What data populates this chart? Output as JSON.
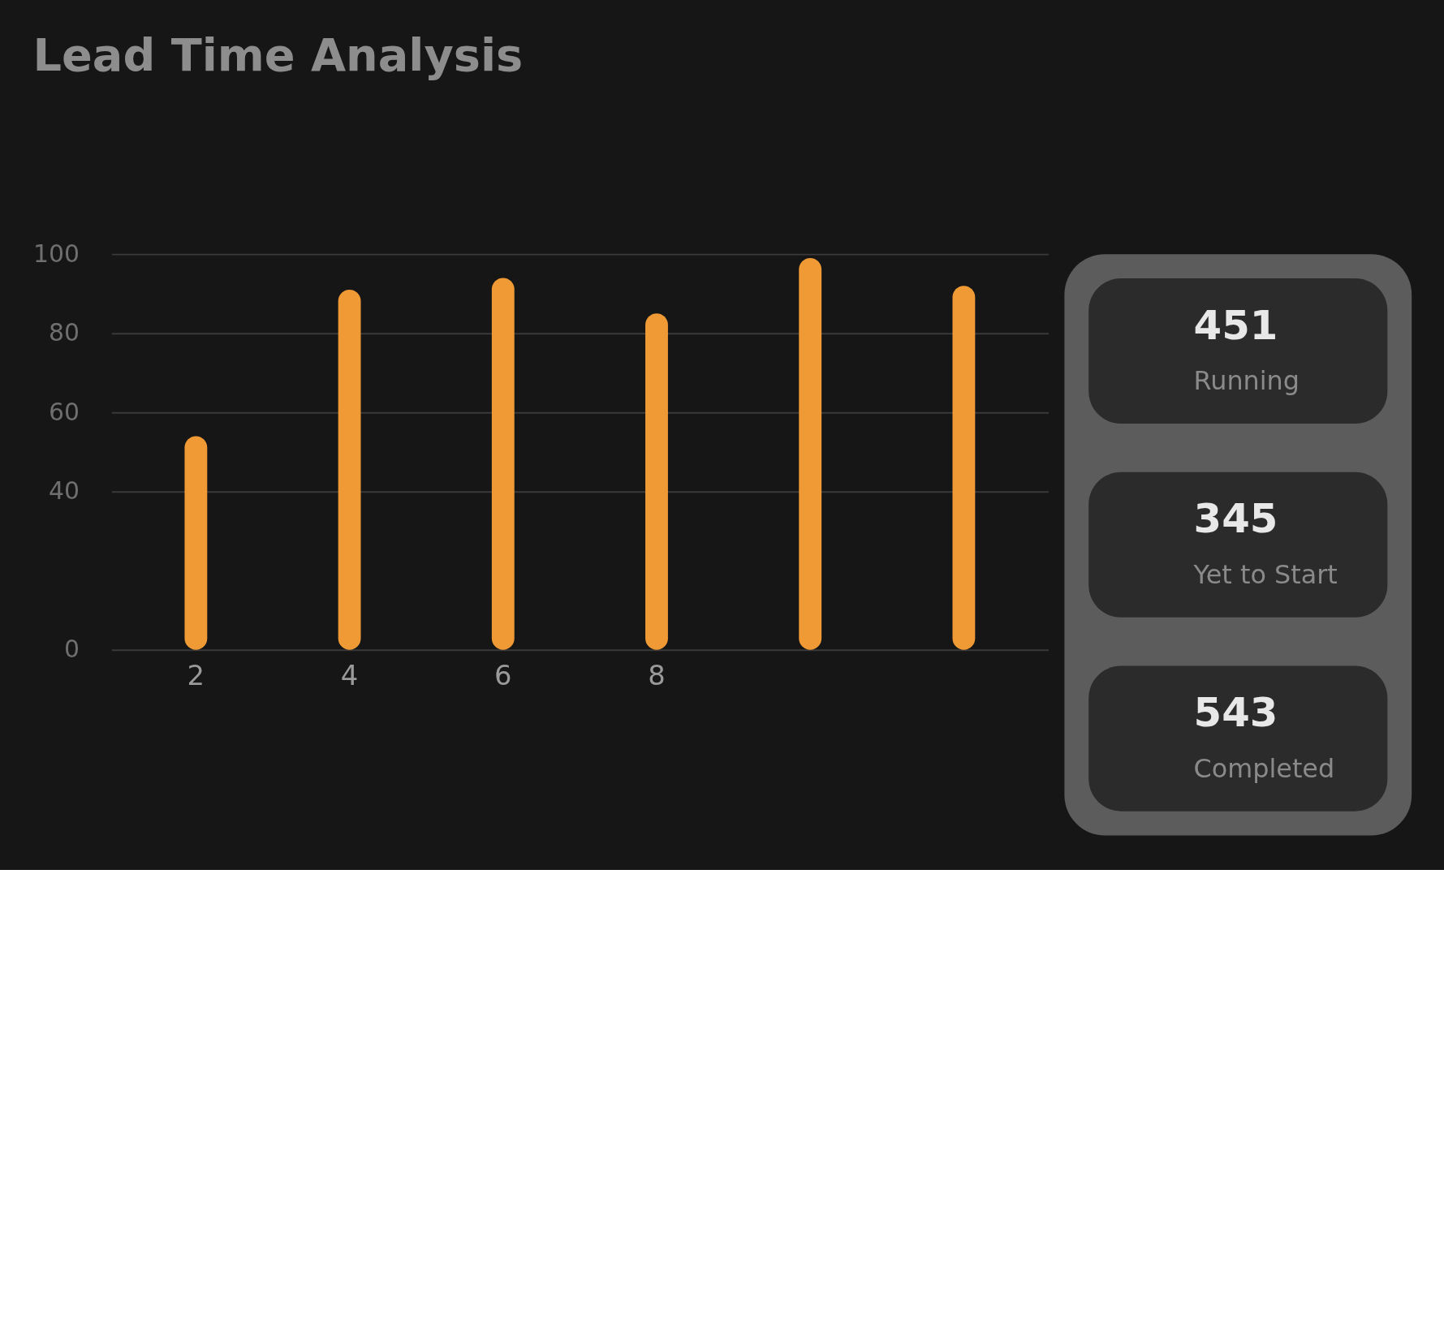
{
  "chart_data": [
    {
      "type": "bar",
      "title": "Lead Time Analysis",
      "categories": [
        "2",
        "4",
        "6",
        "8",
        null,
        null
      ],
      "values": [
        54,
        91,
        94,
        85,
        99,
        92
      ],
      "color": "#f09a36",
      "ylim": [
        0,
        100
      ],
      "yticks": [
        0,
        40,
        60,
        80,
        100
      ],
      "grid": "y"
    },
    {
      "type": "other",
      "annotations": [
        "451",
        "Running",
        "345",
        "Yet to Start",
        "543",
        "Completed"
      ]
    }
  ]
}
